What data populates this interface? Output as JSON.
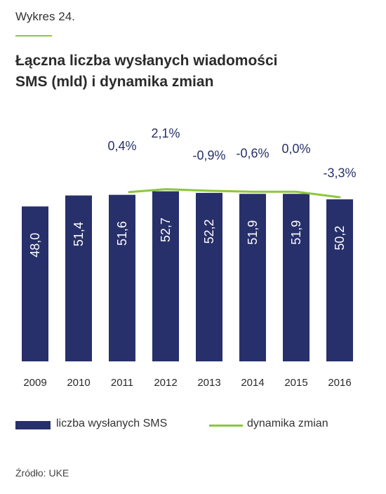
{
  "figure_label": "Wykres 24.",
  "title_lines": [
    "Łączna liczba wysłanych wiadomości",
    "SMS (mld) i dynamika zmian"
  ],
  "source": "Źródło: UKE",
  "colors": {
    "bar": "#27306a",
    "line": "#8dc63f",
    "label_dark": "#27306a",
    "axis_text": "#2a2a2a"
  },
  "chart_data": {
    "type": "bar",
    "categories": [
      "2009",
      "2010",
      "2011",
      "2012",
      "2013",
      "2014",
      "2015",
      "2016"
    ],
    "series": [
      {
        "name": "liczba wysłanych SMS",
        "type": "bar",
        "values": [
          48.0,
          51.4,
          51.6,
          52.7,
          52.2,
          51.9,
          51.9,
          50.2
        ],
        "labels": [
          "48,0",
          "51,4",
          "51,6",
          "52,7",
          "52,2",
          "51,9",
          "51,9",
          "50,2"
        ]
      },
      {
        "name": "dynamika zmian",
        "type": "line",
        "unit": "%",
        "values": [
          null,
          null,
          0.4,
          2.1,
          -0.9,
          -0.6,
          0.0,
          -3.3
        ],
        "labels": [
          "",
          "",
          "0,4%",
          "2,1%",
          "-0,9%",
          "-0,6%",
          "0,0%",
          "-3,3%"
        ]
      }
    ],
    "legend": "bottom"
  }
}
